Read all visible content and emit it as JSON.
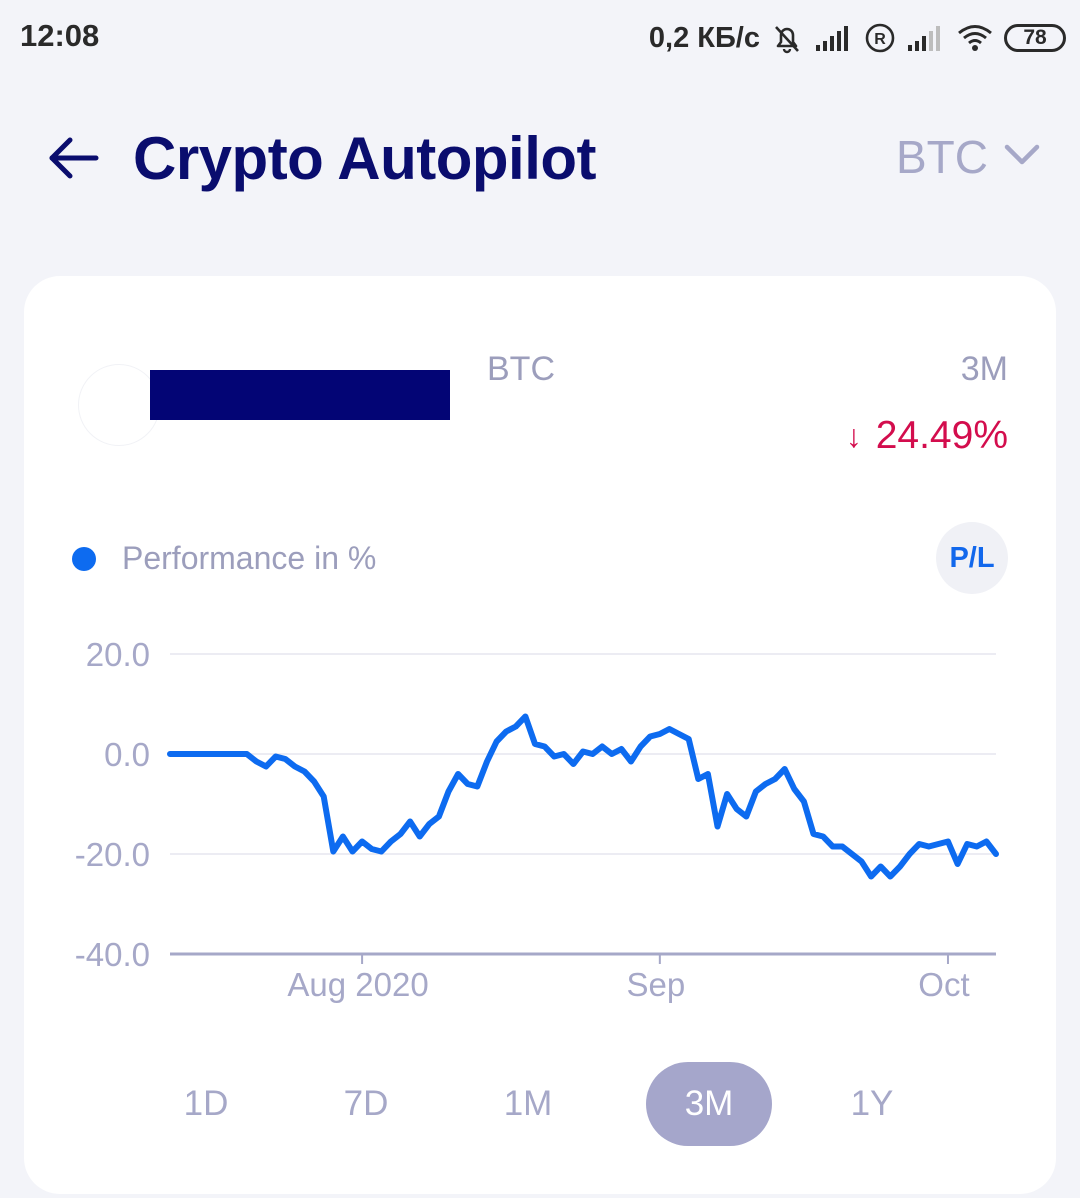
{
  "status_bar": {
    "time": "12:08",
    "network_speed": "0,2 КБ/с",
    "battery": "78",
    "icons": [
      "bell-off-icon",
      "signal-icon",
      "roaming-r-icon",
      "signal-weak-icon",
      "wifi-icon",
      "battery-icon"
    ]
  },
  "header": {
    "title": "Crypto Autopilot",
    "asset_selector": "BTC",
    "icons": [
      "arrow-left-icon",
      "chevron-down-icon"
    ]
  },
  "summary": {
    "asset": "BTC",
    "period": "3M",
    "change_arrow": "↓",
    "change": "24.49%",
    "change_color": "#d30d4d"
  },
  "legend": {
    "label": "Performance in %",
    "color": "#0d6bf0"
  },
  "pl_toggle": "P/L",
  "chart_data": {
    "type": "line",
    "title": "",
    "xlabel": "",
    "ylabel": "",
    "ylim": [
      -40,
      20
    ],
    "y_ticks": [
      "20.0",
      "0.0",
      "-20.0",
      "-40.0"
    ],
    "x_ticks": [
      "Aug 2020",
      "Sep",
      "Oct"
    ],
    "grid": true,
    "series": [
      {
        "name": "Performance in %",
        "color": "#0d6bf0",
        "x": [
          "2020-07-12",
          "2020-07-13",
          "2020-07-14",
          "2020-07-15",
          "2020-07-16",
          "2020-07-17",
          "2020-07-18",
          "2020-07-19",
          "2020-07-20",
          "2020-07-21",
          "2020-07-22",
          "2020-07-23",
          "2020-07-24",
          "2020-07-25",
          "2020-07-26",
          "2020-07-27",
          "2020-07-28",
          "2020-07-29",
          "2020-07-30",
          "2020-07-31",
          "2020-08-01",
          "2020-08-02",
          "2020-08-03",
          "2020-08-04",
          "2020-08-05",
          "2020-08-06",
          "2020-08-07",
          "2020-08-08",
          "2020-08-09",
          "2020-08-10",
          "2020-08-11",
          "2020-08-12",
          "2020-08-13",
          "2020-08-14",
          "2020-08-15",
          "2020-08-16",
          "2020-08-17",
          "2020-08-18",
          "2020-08-19",
          "2020-08-20",
          "2020-08-21",
          "2020-08-22",
          "2020-08-23",
          "2020-08-24",
          "2020-08-25",
          "2020-08-26",
          "2020-08-27",
          "2020-08-28",
          "2020-08-29",
          "2020-08-30",
          "2020-08-31",
          "2020-09-01",
          "2020-09-02",
          "2020-09-03",
          "2020-09-04",
          "2020-09-05",
          "2020-09-06",
          "2020-09-07",
          "2020-09-08",
          "2020-09-09",
          "2020-09-10",
          "2020-09-11",
          "2020-09-12",
          "2020-09-13",
          "2020-09-14",
          "2020-09-15",
          "2020-09-16",
          "2020-09-17",
          "2020-09-18",
          "2020-09-19",
          "2020-09-20",
          "2020-09-21",
          "2020-09-22",
          "2020-09-23",
          "2020-09-24",
          "2020-09-25",
          "2020-09-26",
          "2020-09-27",
          "2020-09-28",
          "2020-09-29",
          "2020-09-30",
          "2020-10-01",
          "2020-10-02",
          "2020-10-03",
          "2020-10-04",
          "2020-10-05",
          "2020-10-06"
        ],
        "values": [
          0,
          0,
          0,
          0,
          0,
          0,
          0,
          0,
          0,
          -1.5,
          -2.5,
          -0.5,
          -1.0,
          -2.5,
          -3.5,
          -5.5,
          -8.5,
          -19.5,
          -16.5,
          -19.5,
          -17.5,
          -19.0,
          -19.5,
          -17.5,
          -16.0,
          -13.5,
          -16.5,
          -14.0,
          -12.5,
          -7.5,
          -4.0,
          -6.0,
          -6.5,
          -1.5,
          2.5,
          4.5,
          5.5,
          7.5,
          2.0,
          1.5,
          -0.5,
          0,
          -2.0,
          0.5,
          0,
          1.5,
          0,
          1.0,
          -1.5,
          1.5,
          3.5,
          4.0,
          5.0,
          4.0,
          3.0,
          -5.0,
          -4.0,
          -14.5,
          -8.0,
          -11.0,
          -12.5,
          -7.5,
          -6.0,
          -5.0,
          -3.0,
          -7.0,
          -9.5,
          -16.0,
          -16.5,
          -18.5,
          -18.5,
          -20.0,
          -21.5,
          -24.5,
          -22.5,
          -24.5,
          -22.5,
          -20.0,
          -18.0,
          -18.5,
          -18.0,
          -17.5,
          -22.0,
          -18.0,
          -18.5,
          -17.5,
          -20.0
        ]
      }
    ]
  },
  "range_tabs": [
    {
      "label": "1D",
      "active": false
    },
    {
      "label": "7D",
      "active": false
    },
    {
      "label": "1M",
      "active": false
    },
    {
      "label": "3M",
      "active": true
    },
    {
      "label": "1Y",
      "active": false
    }
  ]
}
